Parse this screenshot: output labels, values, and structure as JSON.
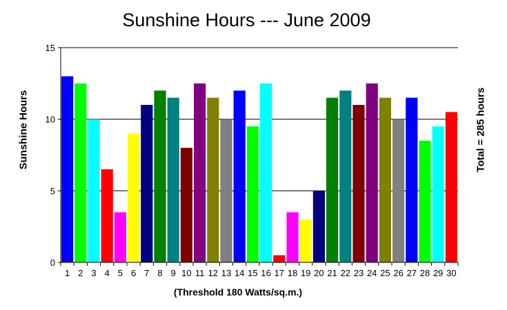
{
  "chart_data": {
    "type": "bar",
    "title": "Sunshine Hours --- June 2009",
    "ylabel": "Sunshine Hours",
    "xlabel": "(Threshold 180 Watts/sq.m.)",
    "right_label": "Total = 285 hours",
    "ylim": [
      0,
      15
    ],
    "yticks": [
      0,
      5,
      10,
      15
    ],
    "grid": true,
    "categories": [
      "1",
      "2",
      "3",
      "4",
      "5",
      "6",
      "7",
      "8",
      "9",
      "10",
      "11",
      "12",
      "13",
      "14",
      "15",
      "16",
      "17",
      "18",
      "19",
      "20",
      "21",
      "22",
      "23",
      "24",
      "25",
      "26",
      "27",
      "28",
      "29",
      "30"
    ],
    "values": [
      13,
      12.5,
      10,
      6.5,
      3.5,
      9,
      11,
      12,
      11.5,
      8,
      12.5,
      11.5,
      10,
      12,
      9.5,
      12.5,
      0.5,
      3.5,
      3,
      5,
      11.5,
      12,
      11,
      12.5,
      11.5,
      10,
      11.5,
      8.5,
      9.5,
      10.5
    ],
    "colors": [
      "#0000ff",
      "#00ff00",
      "#00ffff",
      "#ff0000",
      "#ff00ff",
      "#ffff00",
      "#000080",
      "#008000",
      "#008080",
      "#800000",
      "#800080",
      "#808000",
      "#808080",
      "#0000ff",
      "#00ff00",
      "#00ffff",
      "#ff0000",
      "#ff00ff",
      "#ffff00",
      "#000080",
      "#008000",
      "#008080",
      "#800000",
      "#800080",
      "#808000",
      "#808080",
      "#0000ff",
      "#00ff00",
      "#00ffff",
      "#ff0000"
    ]
  }
}
